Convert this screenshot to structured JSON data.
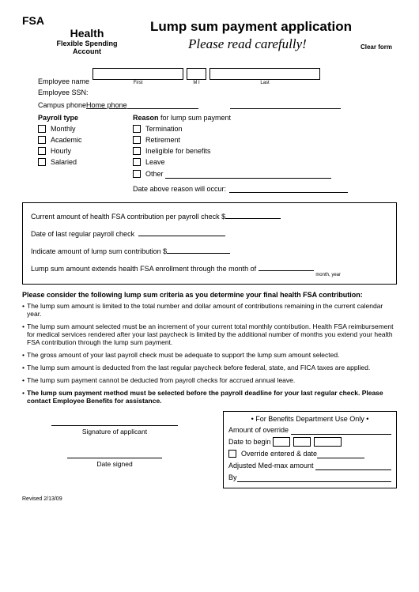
{
  "header": {
    "fsa": "FSA",
    "health": "Health",
    "health_sub1": "Flexible Spending",
    "health_sub2": "Account",
    "title": "Lump sum payment application",
    "cursive": "Please read carefully!",
    "clear": "Clear form"
  },
  "employee": {
    "name_label": "Employee name",
    "first": "First",
    "mi": "M I",
    "last": "Last",
    "ssn_label": "Employee SSN:",
    "campus_label": "Campus phone",
    "home_label": "Home phone"
  },
  "payroll": {
    "title": "Payroll type",
    "opts": [
      "Monthly",
      "Academic",
      "Hourly",
      "Salaried"
    ]
  },
  "reason": {
    "title_a": "Reason",
    "title_b": " for lump sum payment",
    "opts": [
      "Termination",
      "Retirement",
      "Ineligible for benefits",
      "Leave",
      "Other"
    ],
    "date_label": "Date above reason will occur:"
  },
  "boxed": {
    "r1": "Current amount of health FSA contribution per payroll check   $",
    "r2": "Date of last regular payroll check",
    "r3": "Indicate amount of lump sum contribution   $",
    "r4": "Lump sum amount extends health FSA enrollment through the month of",
    "my": "month, year"
  },
  "criteria": {
    "title": "Please consider the following lump sum criteria as you determine your final health FSA contribution:",
    "items": [
      "The lump sum amount is limited to the total number and dollar amount of contributions remaining in the current calendar year.",
      "The lump sum amount selected must be an increment of your current total monthly contribution. Health FSA reimbursement for medical services rendered after your last paycheck is limited by the additional number of months you extend your health FSA contribution through the lump sum payment.",
      "The gross amount of your last payroll check must be adequate to support the lump sum amount selected.",
      "The lump sum amount is deducted from the last regular paycheck before federal, state, and FICA taxes are applied.",
      "The lump sum payment cannot be deducted from payroll checks for accrued annual leave.",
      "<b>The lump sum payment method must be selected before the payroll deadline for your last regular check. Please contact Employee Benefits for assistance.</b>"
    ]
  },
  "sig": {
    "applicant": "Signature of applicant",
    "date": "Date signed"
  },
  "dept": {
    "title": "•  For Benefits Department Use Only  •",
    "override": "Amount of override",
    "begin": "Date to begin",
    "entered": "Override entered & date",
    "medmax": "Adjusted Med-max amount",
    "by": "By"
  },
  "revised": "Revised 2/13/09"
}
